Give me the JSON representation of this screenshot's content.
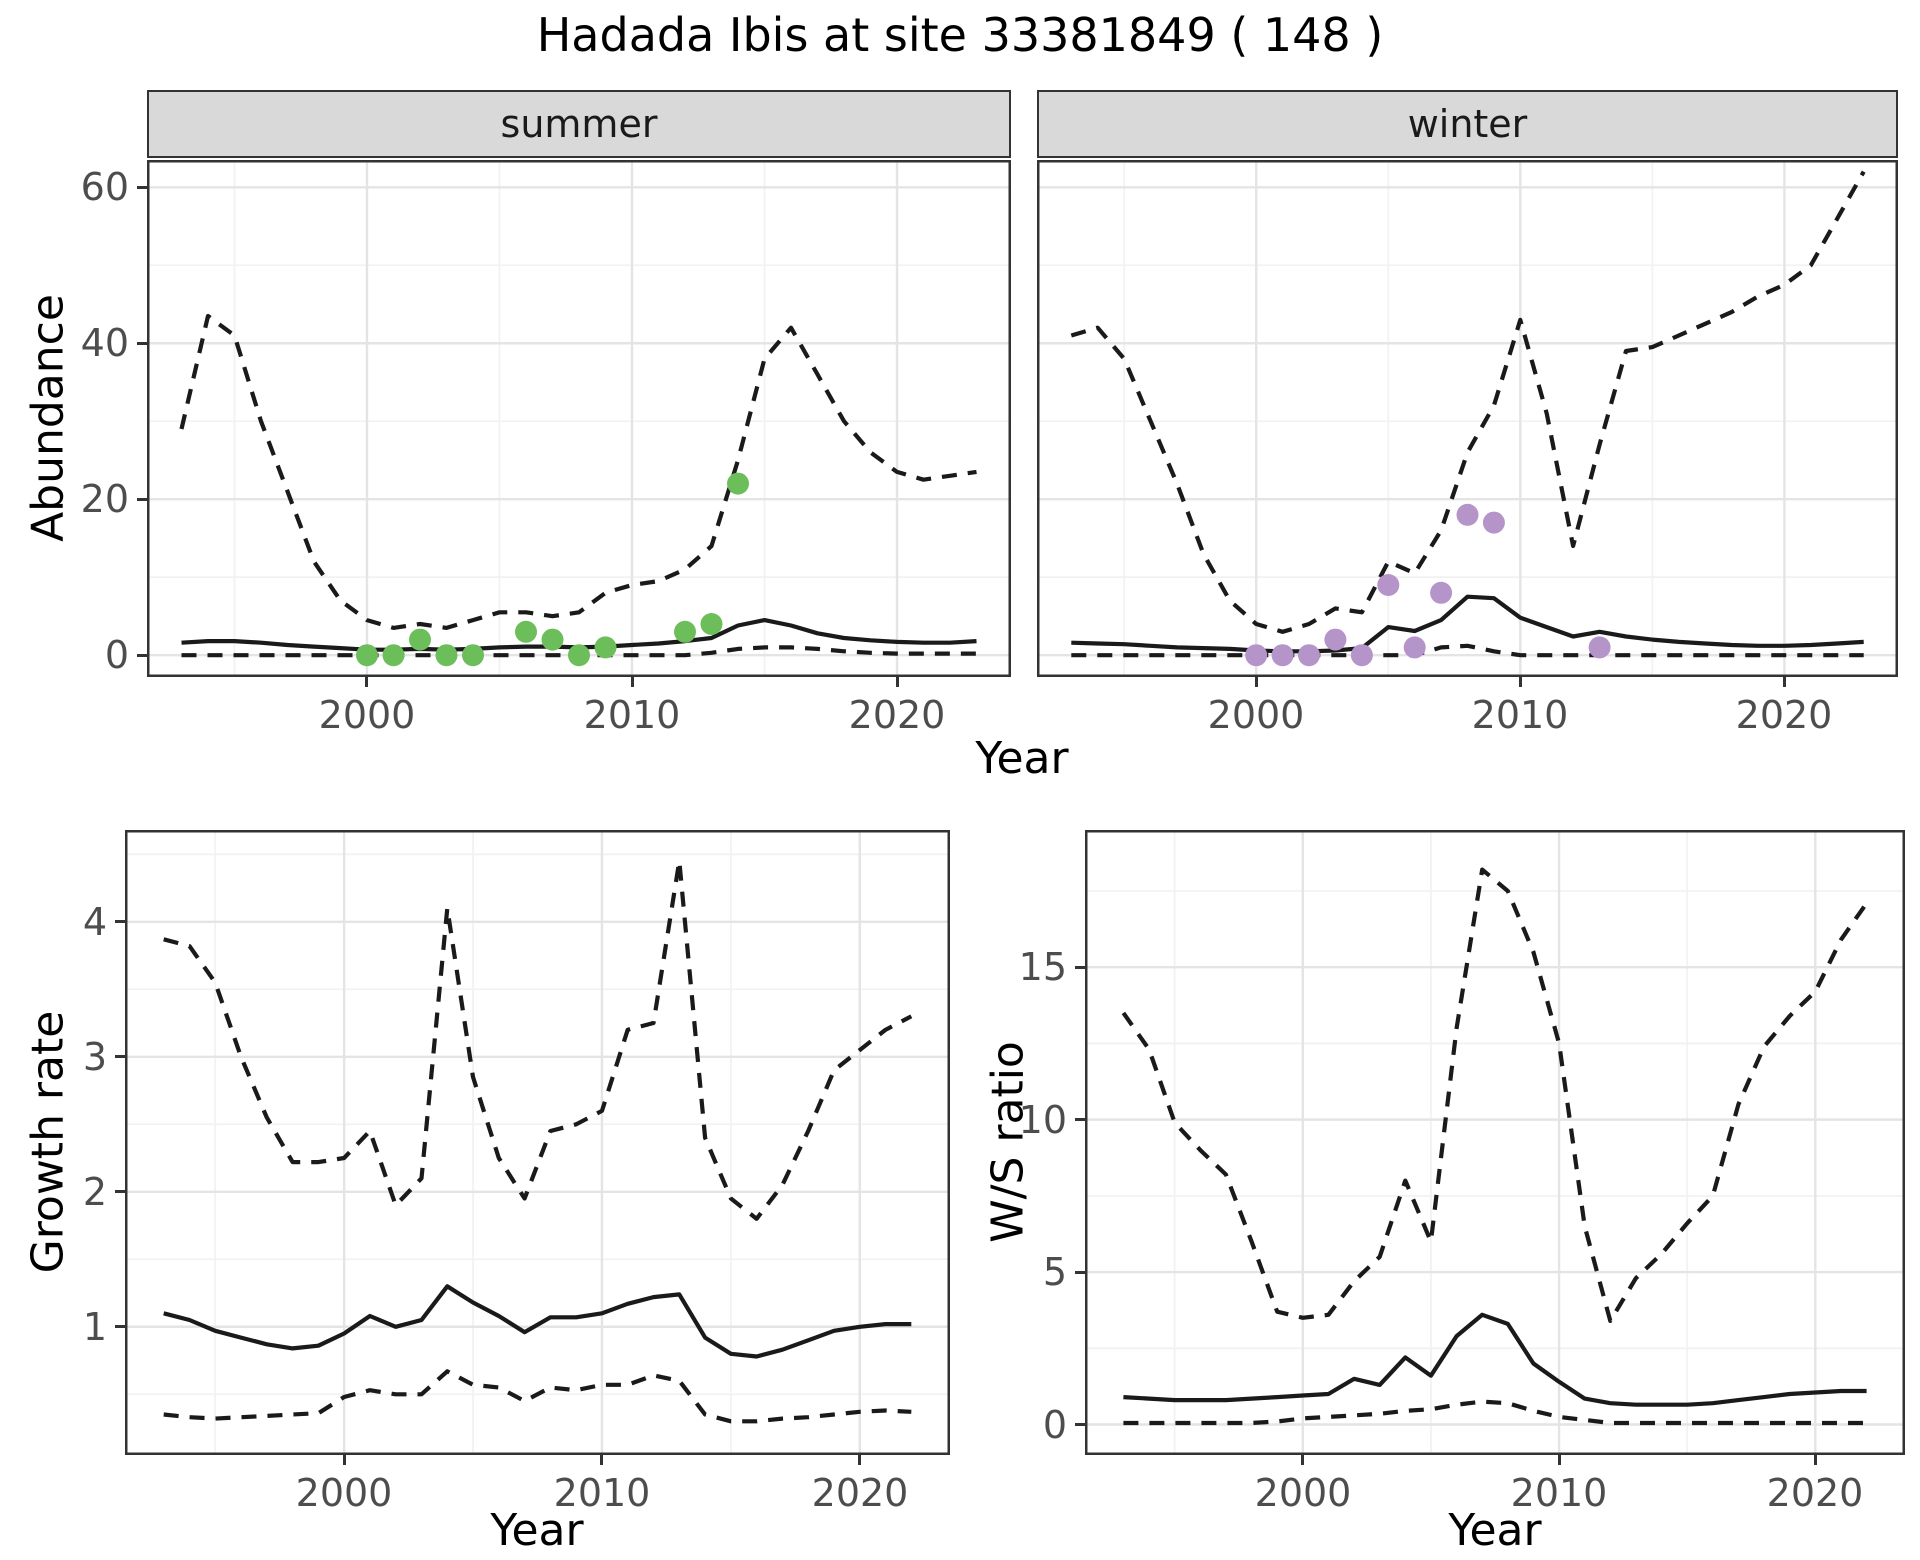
{
  "title": "Hadada Ibis at site 33381849 ( 148 )",
  "axis_labels": {
    "year": "Year",
    "abundance": "Abundance",
    "growth_rate": "Growth rate",
    "ws_ratio": "W/S ratio"
  },
  "facets": {
    "summer": "summer",
    "winter": "winter"
  },
  "colors": {
    "summer_point": "#6cbe5b",
    "winter_point": "#b494c9",
    "line": "#1a1a1a",
    "strip_background": "#d9d9d9",
    "panel_border": "#333333",
    "grid_major": "#e4e4e4",
    "grid_minor": "#f2f2f2",
    "tick_text": "#4d4d4d"
  },
  "chart_data": [
    {
      "id": "abundance_summer",
      "type": "line",
      "facet": "summer",
      "ylabel": "Abundance",
      "xlabel": "Year",
      "xlim": [
        1991.7,
        2024.3
      ],
      "ylim": [
        -2.8,
        63.5
      ],
      "xticks": [
        2000,
        2010,
        2020
      ],
      "xminor": [
        1995,
        2005,
        2015
      ],
      "yticks": [
        0,
        20,
        40,
        60
      ],
      "yminor": [
        10,
        30,
        50
      ],
      "years": [
        1993,
        1994,
        1995,
        1996,
        1997,
        1998,
        1999,
        2000,
        2001,
        2002,
        2003,
        2004,
        2005,
        2006,
        2007,
        2008,
        2009,
        2010,
        2011,
        2012,
        2013,
        2014,
        2015,
        2016,
        2017,
        2018,
        2019,
        2020,
        2021,
        2022,
        2023
      ],
      "series": {
        "upper95": [
          29,
          43.5,
          41,
          30,
          21,
          12,
          7,
          4.5,
          3.5,
          4,
          3.5,
          4.5,
          5.5,
          5.5,
          5,
          5.5,
          8,
          9,
          9.5,
          11,
          14,
          25,
          38,
          42,
          36,
          30,
          26,
          23.5,
          22.5,
          23,
          23.5
        ],
        "median": [
          1.6,
          1.8,
          1.8,
          1.6,
          1.3,
          1.1,
          0.9,
          0.7,
          0.7,
          0.8,
          0.7,
          0.8,
          1.0,
          1.1,
          1.1,
          1.0,
          1.1,
          1.3,
          1.5,
          1.8,
          2.2,
          3.8,
          4.5,
          3.8,
          2.8,
          2.2,
          1.9,
          1.7,
          1.6,
          1.6,
          1.8
        ],
        "lower95": [
          0,
          0,
          0,
          0,
          0,
          0,
          0,
          0,
          0,
          0,
          0,
          0,
          0,
          0,
          0,
          0,
          0,
          0,
          0,
          0,
          0.3,
          0.8,
          1,
          1,
          0.8,
          0.5,
          0.3,
          0.2,
          0.2,
          0.2,
          0.2
        ]
      },
      "observations": [
        [
          2000,
          0
        ],
        [
          2001,
          0
        ],
        [
          2002,
          2
        ],
        [
          2003,
          0
        ],
        [
          2004,
          0
        ],
        [
          2006,
          3
        ],
        [
          2007,
          2
        ],
        [
          2008,
          0
        ],
        [
          2009,
          1
        ],
        [
          2012,
          3
        ],
        [
          2013,
          4
        ],
        [
          2014,
          22
        ]
      ],
      "point_color": "#6cbe5b"
    },
    {
      "id": "abundance_winter",
      "type": "line",
      "facet": "winter",
      "ylabel": "Abundance",
      "xlabel": "Year",
      "xlim": [
        1991.7,
        2024.3
      ],
      "ylim": [
        -2.8,
        63.5
      ],
      "xticks": [
        2000,
        2010,
        2020
      ],
      "xminor": [
        1995,
        2005,
        2015
      ],
      "yticks": [
        0,
        20,
        40,
        60
      ],
      "yminor": [
        10,
        30,
        50
      ],
      "years": [
        1993,
        1994,
        1995,
        1996,
        1997,
        1998,
        1999,
        2000,
        2001,
        2002,
        2003,
        2004,
        2005,
        2006,
        2007,
        2008,
        2009,
        2010,
        2011,
        2012,
        2013,
        2014,
        2015,
        2016,
        2017,
        2018,
        2019,
        2020,
        2021,
        2022,
        2023
      ],
      "series": {
        "upper95": [
          41,
          42,
          38,
          30,
          22,
          13,
          7,
          4,
          3,
          4,
          6,
          5.5,
          12,
          10.5,
          16,
          26,
          32,
          43,
          31,
          14,
          27,
          39,
          39.5,
          41,
          42.5,
          44,
          46,
          47.5,
          50,
          56,
          62
        ],
        "median": [
          1.6,
          1.5,
          1.4,
          1.2,
          1.0,
          0.9,
          0.8,
          0.6,
          0.5,
          0.5,
          0.6,
          0.9,
          3.6,
          3.1,
          4.5,
          7.5,
          7.3,
          4.8,
          3.6,
          2.4,
          3.0,
          2.4,
          2.0,
          1.7,
          1.5,
          1.3,
          1.2,
          1.2,
          1.3,
          1.5,
          1.7
        ],
        "lower95": [
          0,
          0,
          0,
          0,
          0,
          0,
          0,
          0,
          0,
          0,
          0,
          0,
          0,
          0,
          1,
          1.2,
          0.5,
          0,
          0,
          0,
          0,
          0,
          0,
          0,
          0,
          0,
          0,
          0,
          0,
          0,
          0
        ]
      },
      "observations": [
        [
          2000,
          0
        ],
        [
          2001,
          0
        ],
        [
          2002,
          0
        ],
        [
          2003,
          2
        ],
        [
          2004,
          0
        ],
        [
          2005,
          9
        ],
        [
          2006,
          1
        ],
        [
          2007,
          8
        ],
        [
          2008,
          18
        ],
        [
          2009,
          17
        ],
        [
          2013,
          1
        ]
      ],
      "point_color": "#b494c9"
    },
    {
      "id": "growth_rate",
      "type": "line",
      "facet": null,
      "ylabel": "Growth rate",
      "xlabel": "Year",
      "xlim": [
        1991.5,
        2023.5
      ],
      "ylim": [
        0.05,
        4.68
      ],
      "xticks": [
        2000,
        2010,
        2020
      ],
      "xminor": [
        1995,
        2005,
        2015
      ],
      "yticks": [
        1,
        2,
        3,
        4
      ],
      "yminor": [
        0.5,
        1.5,
        2.5,
        3.5,
        4.5
      ],
      "years": [
        1993,
        1994,
        1995,
        1996,
        1997,
        1998,
        1999,
        2000,
        2001,
        2002,
        2003,
        2004,
        2005,
        2006,
        2007,
        2008,
        2009,
        2010,
        2011,
        2012,
        2013,
        2014,
        2015,
        2016,
        2017,
        2018,
        2019,
        2020,
        2021,
        2022
      ],
      "series": {
        "upper95": [
          3.87,
          3.82,
          3.55,
          3.0,
          2.55,
          2.22,
          2.22,
          2.25,
          2.45,
          1.9,
          2.1,
          4.1,
          2.85,
          2.25,
          1.95,
          2.45,
          2.5,
          2.6,
          3.2,
          3.25,
          4.45,
          2.4,
          1.95,
          1.8,
          2.05,
          2.45,
          2.9,
          3.05,
          3.2,
          3.3
        ],
        "median": [
          1.1,
          1.05,
          0.97,
          0.92,
          0.87,
          0.84,
          0.86,
          0.95,
          1.08,
          1.0,
          1.05,
          1.3,
          1.18,
          1.08,
          0.96,
          1.07,
          1.07,
          1.1,
          1.17,
          1.22,
          1.24,
          0.92,
          0.8,
          0.78,
          0.83,
          0.9,
          0.97,
          1.0,
          1.02,
          1.02
        ],
        "lower95": [
          0.35,
          0.33,
          0.32,
          0.33,
          0.34,
          0.35,
          0.36,
          0.48,
          0.53,
          0.5,
          0.5,
          0.67,
          0.57,
          0.55,
          0.45,
          0.55,
          0.53,
          0.57,
          0.57,
          0.64,
          0.6,
          0.35,
          0.3,
          0.3,
          0.32,
          0.33,
          0.35,
          0.37,
          0.38,
          0.37
        ]
      },
      "observations": [],
      "point_color": null
    },
    {
      "id": "ws_ratio",
      "type": "line",
      "facet": null,
      "ylabel": "W/S ratio",
      "xlabel": "Year",
      "xlim": [
        1991.5,
        2023.5
      ],
      "ylim": [
        -1.0,
        19.5
      ],
      "xticks": [
        2000,
        2010,
        2020
      ],
      "xminor": [
        1995,
        2005,
        2015
      ],
      "yticks": [
        0,
        5,
        10,
        15
      ],
      "yminor": [
        2.5,
        7.5,
        12.5,
        17.5
      ],
      "years": [
        1993,
        1994,
        1995,
        1996,
        1997,
        1998,
        1999,
        2000,
        2001,
        2002,
        2003,
        2004,
        2005,
        2006,
        2007,
        2008,
        2009,
        2010,
        2011,
        2012,
        2013,
        2014,
        2015,
        2016,
        2017,
        2018,
        2019,
        2020,
        2021,
        2022
      ],
      "series": {
        "upper95": [
          13.5,
          12.3,
          9.9,
          9.0,
          8.2,
          6.0,
          3.7,
          3.5,
          3.6,
          4.7,
          5.5,
          8.0,
          6.0,
          13.0,
          18.2,
          17.5,
          15.5,
          12.5,
          6.5,
          3.4,
          4.8,
          5.6,
          6.6,
          7.5,
          10.5,
          12.4,
          13.4,
          14.2,
          15.9,
          17.1
        ],
        "median": [
          0.9,
          0.85,
          0.8,
          0.8,
          0.8,
          0.85,
          0.9,
          0.95,
          1.0,
          1.5,
          1.3,
          2.2,
          1.6,
          2.9,
          3.6,
          3.3,
          2.0,
          1.4,
          0.85,
          0.7,
          0.65,
          0.65,
          0.65,
          0.7,
          0.8,
          0.9,
          1.0,
          1.05,
          1.1,
          1.1
        ],
        "lower95": [
          0.05,
          0.05,
          0.05,
          0.05,
          0.05,
          0.05,
          0.1,
          0.2,
          0.25,
          0.3,
          0.35,
          0.45,
          0.5,
          0.65,
          0.75,
          0.7,
          0.45,
          0.25,
          0.15,
          0.05,
          0.05,
          0.05,
          0.05,
          0.05,
          0.05,
          0.05,
          0.05,
          0.05,
          0.05,
          0.05
        ]
      },
      "observations": [],
      "point_color": null
    }
  ]
}
